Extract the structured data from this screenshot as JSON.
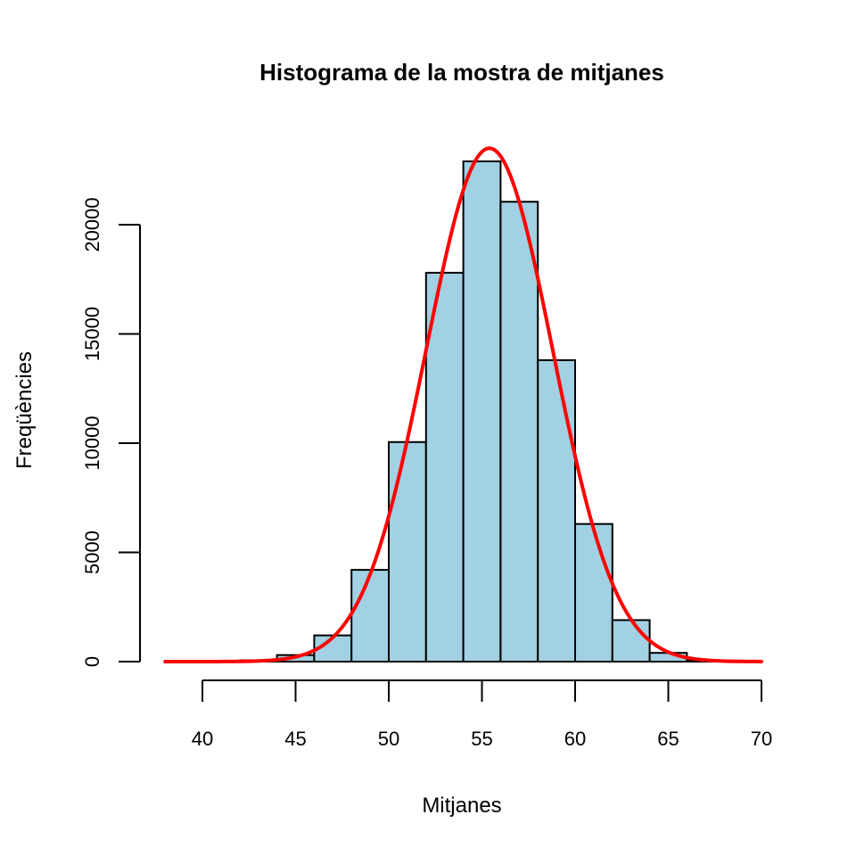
{
  "chart_data": {
    "type": "bar",
    "title": "Histograma de la mostra de mitjanes",
    "xlabel": "Mitjanes",
    "ylabel": "Freqüències",
    "x_ticks": [
      40,
      45,
      50,
      55,
      60,
      65,
      70
    ],
    "y_ticks": [
      0,
      5000,
      10000,
      15000,
      20000
    ],
    "xlim": [
      38,
      70
    ],
    "ylim": [
      0,
      23500
    ],
    "bins": [
      {
        "start": 42,
        "end": 44,
        "count": 60
      },
      {
        "start": 44,
        "end": 46,
        "count": 300
      },
      {
        "start": 46,
        "end": 48,
        "count": 1200
      },
      {
        "start": 48,
        "end": 50,
        "count": 4200
      },
      {
        "start": 50,
        "end": 52,
        "count": 10050
      },
      {
        "start": 52,
        "end": 54,
        "count": 17800
      },
      {
        "start": 54,
        "end": 56,
        "count": 22900
      },
      {
        "start": 56,
        "end": 58,
        "count": 21050
      },
      {
        "start": 58,
        "end": 60,
        "count": 13800
      },
      {
        "start": 60,
        "end": 62,
        "count": 6300
      },
      {
        "start": 62,
        "end": 64,
        "count": 1900
      },
      {
        "start": 64,
        "end": 66,
        "count": 400
      },
      {
        "start": 66,
        "end": 68,
        "count": 60
      }
    ],
    "curve": {
      "type": "normal-density-fit",
      "mean": 55.4,
      "sd": 3.4,
      "peak": 23500,
      "x_range": [
        38,
        70
      ]
    },
    "colors": {
      "bar_fill": "#a1d1e2",
      "bar_stroke": "#000000",
      "curve": "#ff0000"
    },
    "grid": false,
    "legend": "none"
  }
}
